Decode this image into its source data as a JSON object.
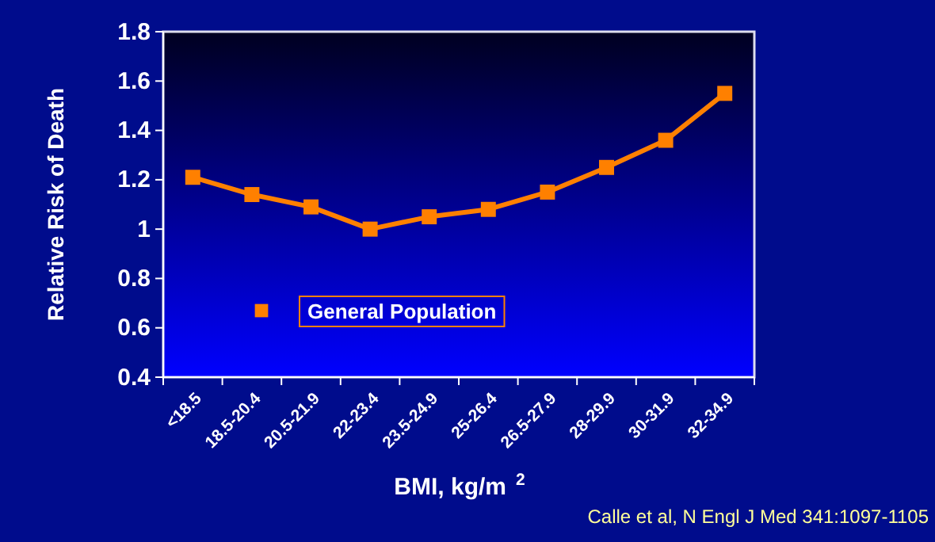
{
  "chart_data": {
    "type": "line",
    "xlabel": "BMI, kg/m$^{2}$",
    "ylabel": "Relative Risk of Death",
    "categories": [
      "<18.5",
      "18.5-20.4",
      "20.5-21.9",
      "22-23.4",
      "23.5-24.9",
      "25-26.4",
      "26.5-27.9",
      "28-29.9",
      "30-31.9",
      "32-34.9"
    ],
    "series": [
      {
        "name": "General Population",
        "color": "#ff8000",
        "values": [
          1.21,
          1.14,
          1.09,
          1.0,
          1.05,
          1.08,
          1.15,
          1.25,
          1.36,
          1.55
        ]
      }
    ],
    "ylim": [
      0.4,
      1.8
    ],
    "yticks": [
      0.4,
      0.6,
      0.8,
      1,
      1.2,
      1.4,
      1.6,
      1.8
    ],
    "grid": false,
    "legend": "bottom left",
    "marker": "square",
    "line_style": "solid",
    "annotations": [
      "Calle et al, N Engl J Med 341:1097-1105"
    ]
  }
}
